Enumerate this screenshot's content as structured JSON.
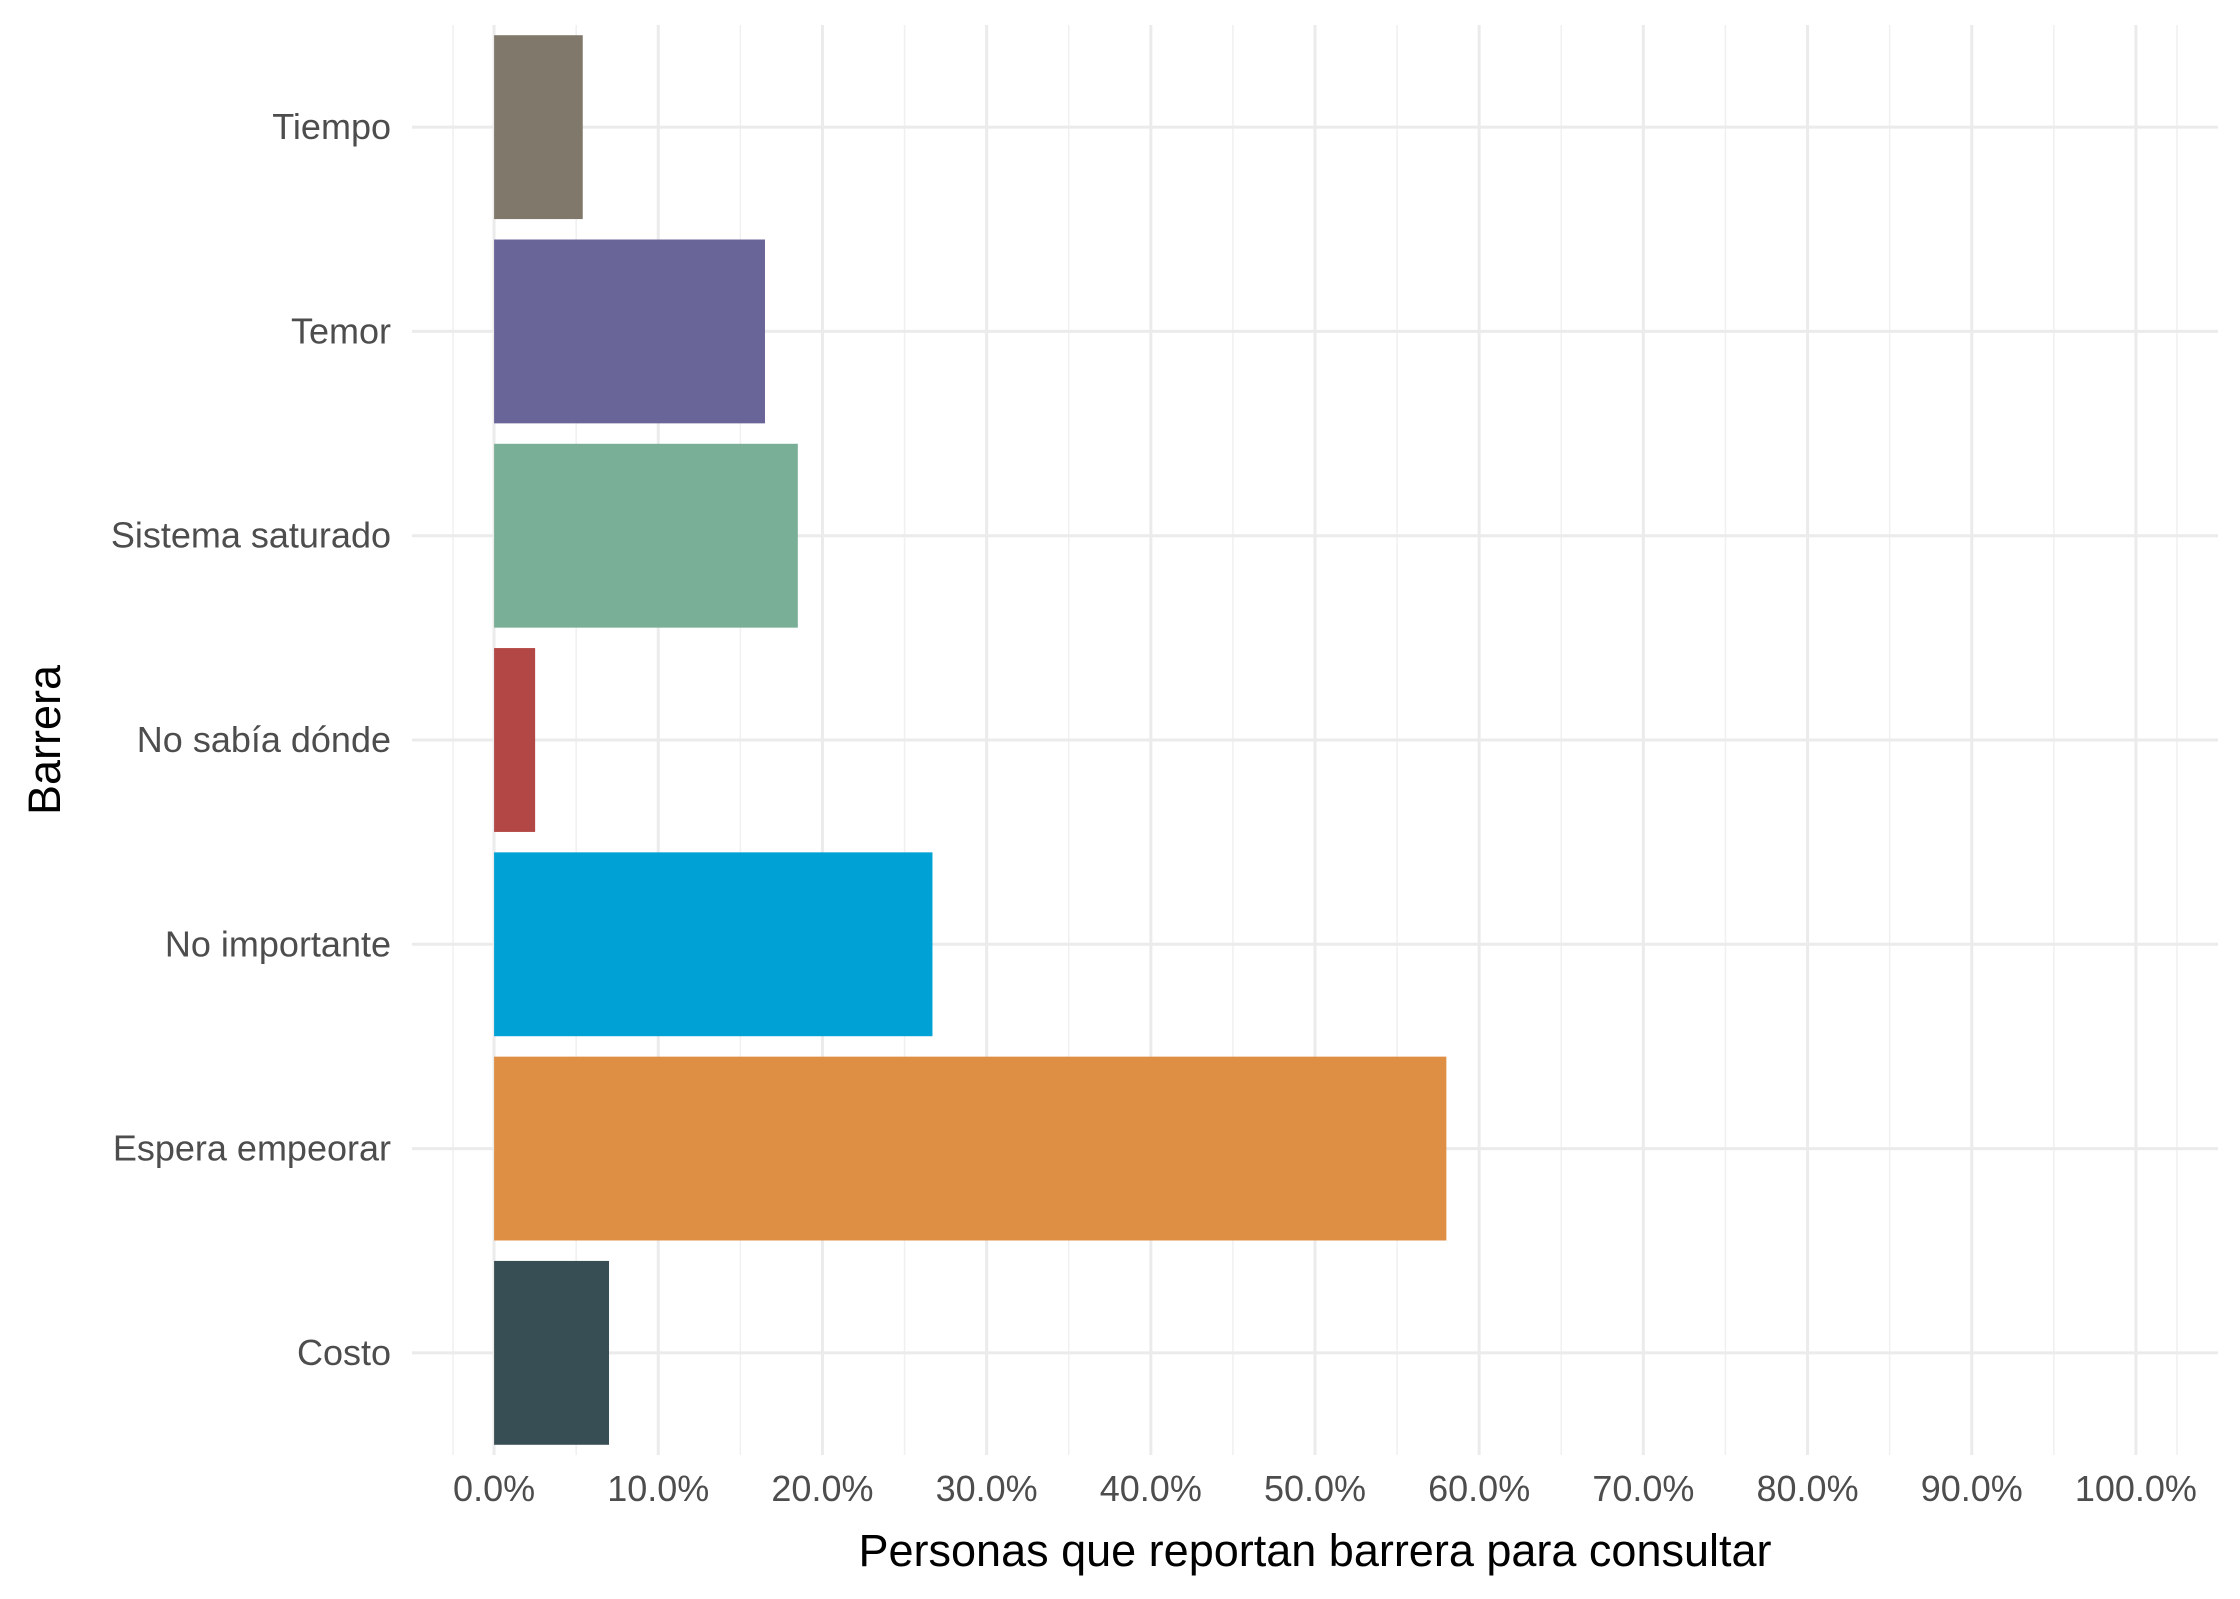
{
  "chart_data": {
    "type": "bar",
    "orientation": "horizontal",
    "categories": [
      "Costo",
      "Espera empeorar",
      "No importante",
      "No sabía dónde",
      "Sistema saturado",
      "Temor",
      "Tiempo"
    ],
    "values": [
      0.07,
      0.58,
      0.267,
      0.025,
      0.185,
      0.165,
      0.054
    ],
    "colors": [
      "#374e55",
      "#df8f44",
      "#00a1d5",
      "#b24745",
      "#79af97",
      "#6a6599",
      "#80796b"
    ],
    "xlabel": "Personas que reportan barrera para consultar",
    "ylabel": "Barrera",
    "xlim": [
      -0.05,
      1.05
    ],
    "x_ticks": [
      0,
      0.1,
      0.2,
      0.3,
      0.4,
      0.5,
      0.6,
      0.7,
      0.8,
      0.9,
      1.0
    ],
    "x_tick_labels": [
      "0.0%",
      "10.0%",
      "20.0%",
      "30.0%",
      "40.0%",
      "50.0%",
      "60.0%",
      "70.0%",
      "80.0%",
      "90.0%",
      "100.0%"
    ],
    "grid": true,
    "legend": "none"
  }
}
